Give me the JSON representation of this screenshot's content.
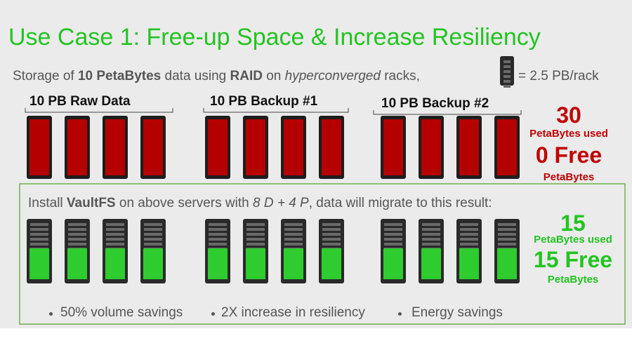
{
  "title": "Use Case 1: Free-up Space & Increase Resiliency",
  "subtitle": [
    "Storage of ",
    "10 PetaBytes",
    " data using ",
    "RAID",
    " on ",
    "hyperconverged",
    " racks,",
    "= 2.5 PB/rack"
  ],
  "groups": [
    "10 PB Raw Data",
    "10 PB Backup #1",
    "10 PB Backup #2"
  ],
  "before": {
    "used": "30",
    "used_label": "PetaBytes used",
    "free": "0 Free",
    "free_label": "PetaBytes"
  },
  "install": [
    "Install ",
    "VaultFS",
    " on above servers with ",
    "8 D + 4 P",
    ", data will migrate to this result:"
  ],
  "after": {
    "used": "15",
    "used_label": "PetaBytes used",
    "free": "15 Free",
    "free_label": "PetaBytes"
  },
  "benefits": [
    "50% volume savings",
    "2X increase in resiliency",
    "Energy savings"
  ]
}
